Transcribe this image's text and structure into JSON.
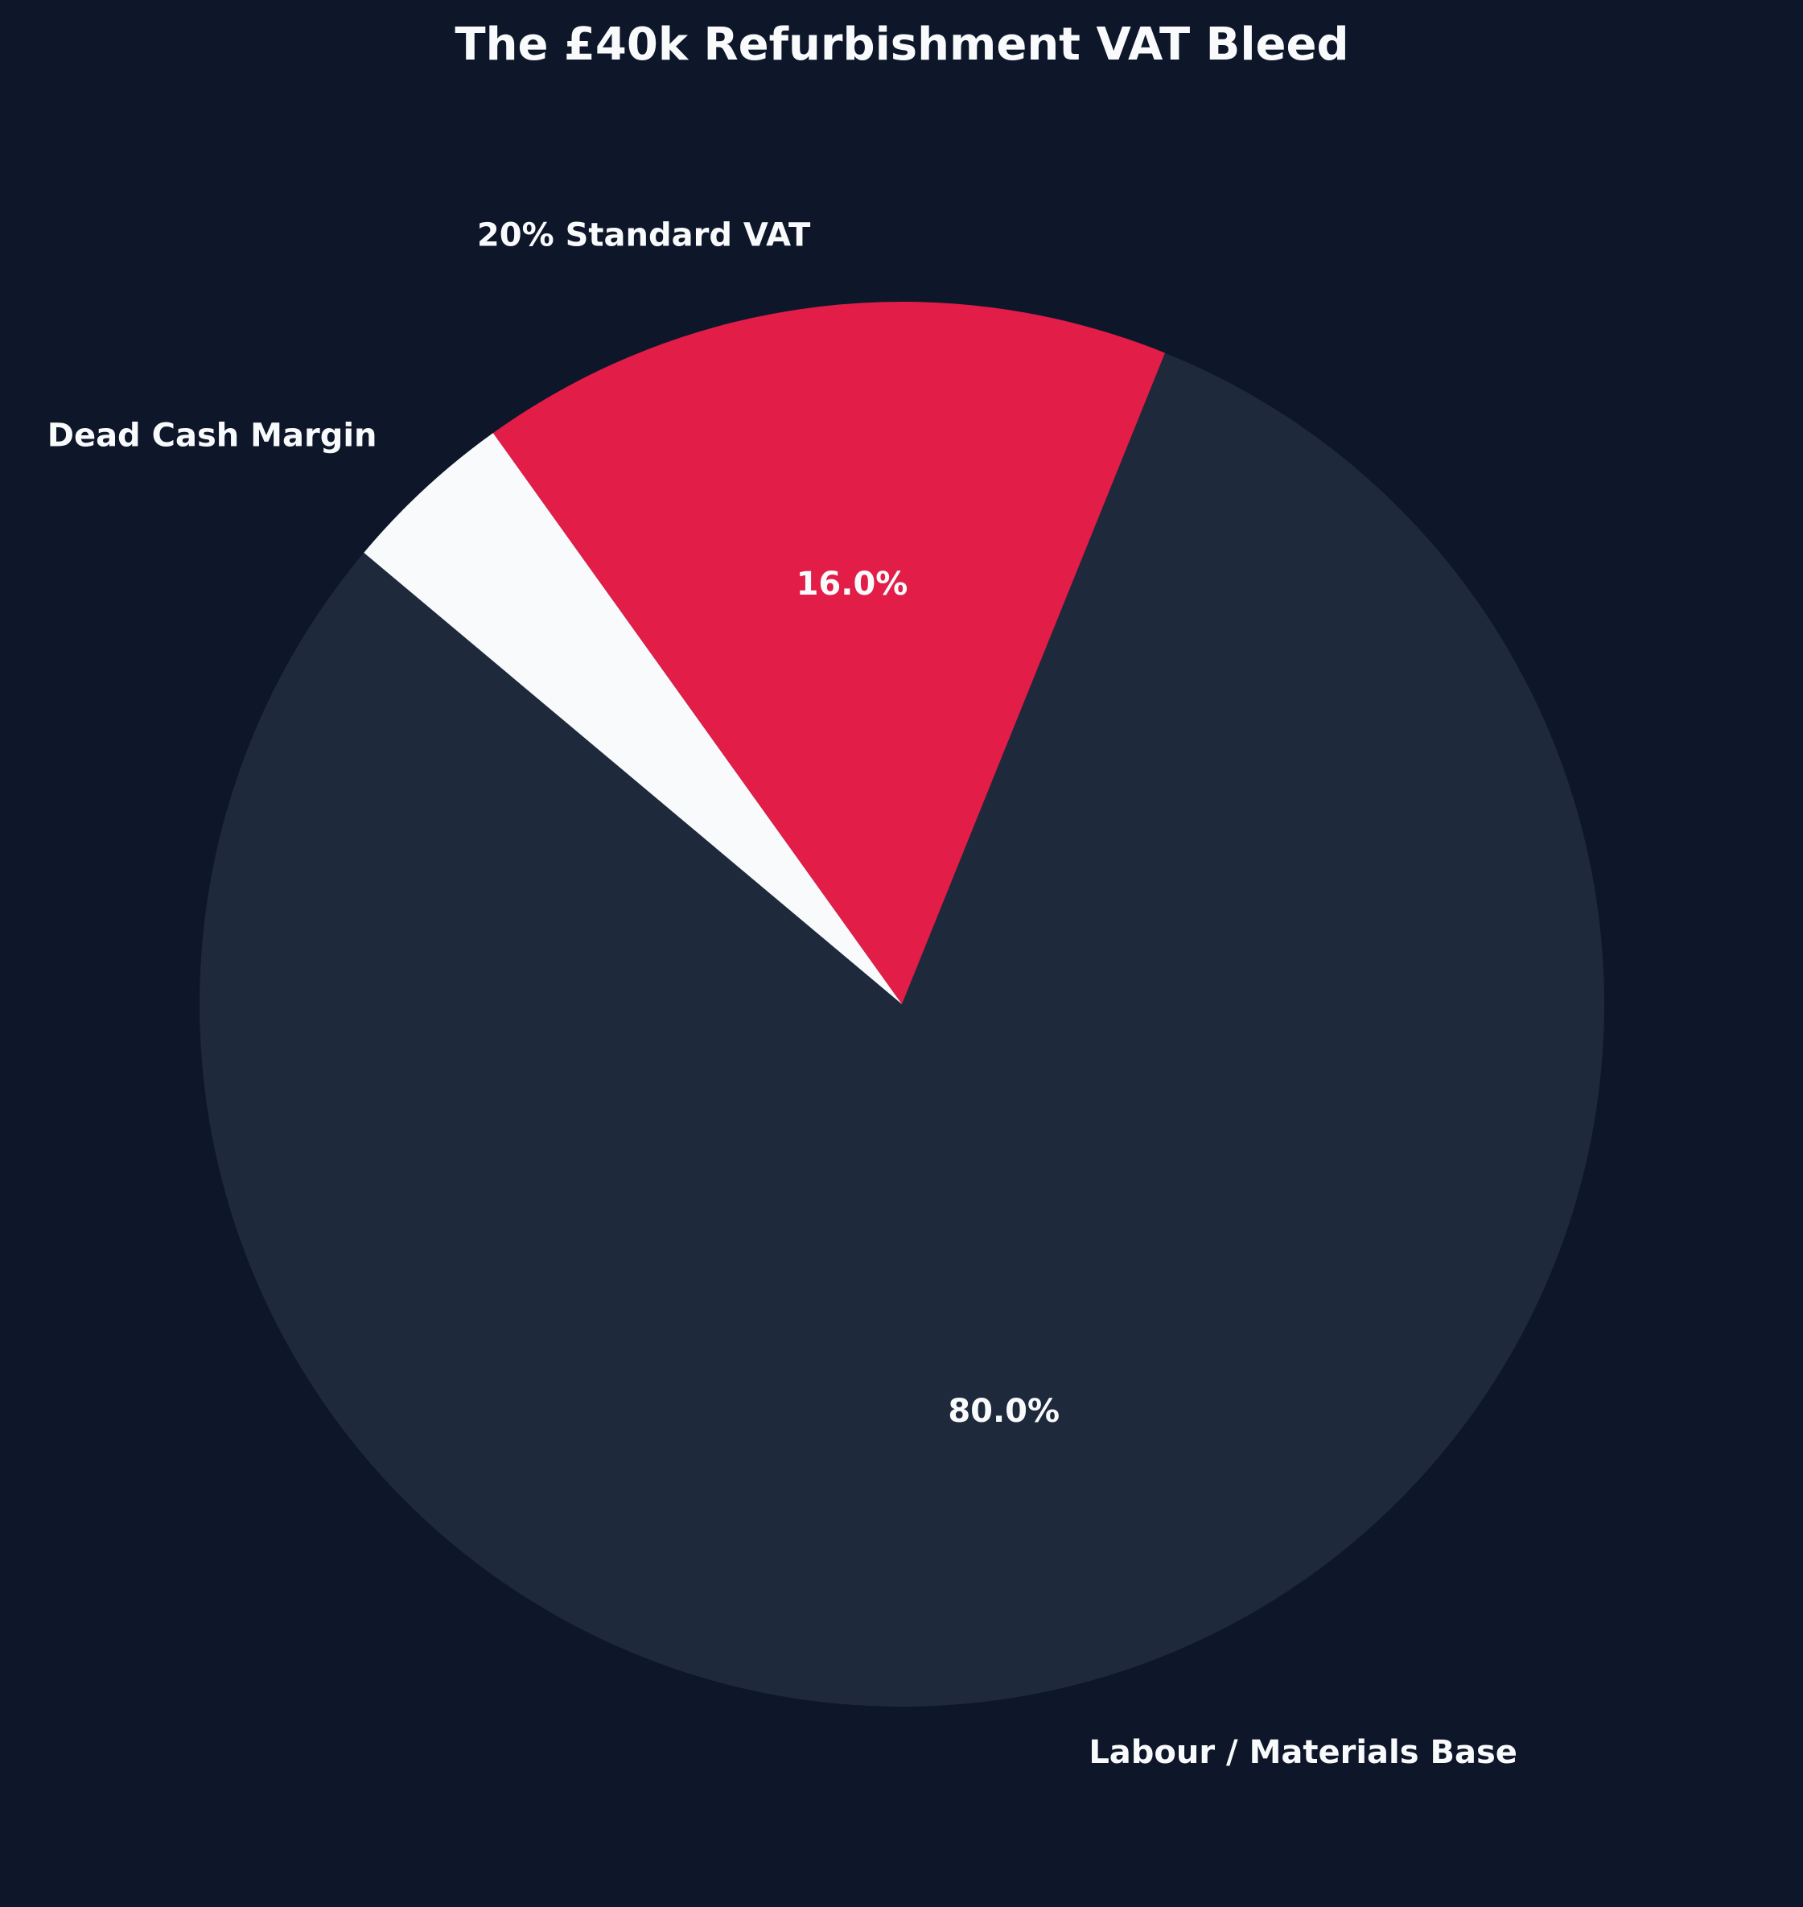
{
  "chart_data": {
    "type": "pie",
    "title": "The £40k Refurbishment VAT Bleed",
    "slices": [
      {
        "label": "Labour / Materials Base",
        "value": 80.0,
        "pct_label": "80.0%",
        "color": "#1e293b"
      },
      {
        "label": "20% Standard VAT",
        "value": 16.0,
        "pct_label": "16.0%",
        "color": "#e11d48"
      },
      {
        "label": "Dead Cash Margin",
        "value": 4.0,
        "pct_label": "",
        "color": "#f8fafc"
      }
    ],
    "background": "#0e1629",
    "text_color": "#f8fafc",
    "start_angle_deg": 140,
    "direction": "counterclockwise"
  }
}
